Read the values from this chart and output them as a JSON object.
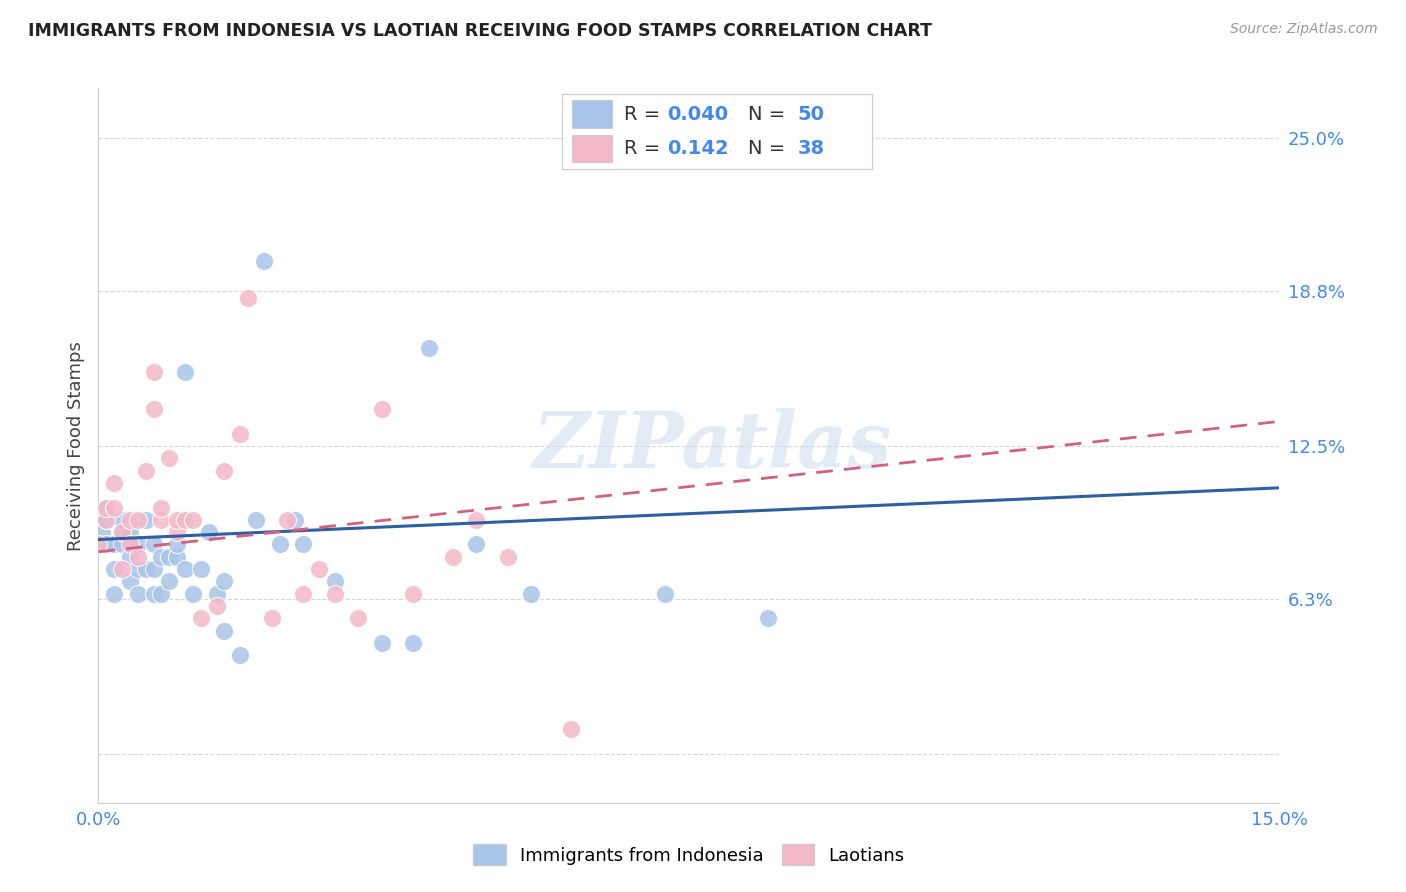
{
  "title": "IMMIGRANTS FROM INDONESIA VS LAOTIAN RECEIVING FOOD STAMPS CORRELATION CHART",
  "source": "Source: ZipAtlas.com",
  "ylabel": "Receiving Food Stamps",
  "xlim": [
    0.0,
    0.15
  ],
  "ylim": [
    -0.02,
    0.27
  ],
  "ytick_vals": [
    0.0,
    0.063,
    0.125,
    0.188,
    0.25
  ],
  "ytick_labels": [
    "",
    "6.3%",
    "12.5%",
    "18.8%",
    "25.0%"
  ],
  "xtick_vals": [
    0.0,
    0.03,
    0.06,
    0.09,
    0.12,
    0.15
  ],
  "xtick_labels": [
    "0.0%",
    "",
    "",
    "",
    "",
    "15.0%"
  ],
  "watermark": "ZIPatlas",
  "color_indonesia": "#a8c4e8",
  "color_laotian": "#f4b8c8",
  "color_line_indonesia": "#2e5fa3",
  "color_line_laotian": "#d4607a",
  "background_color": "#ffffff",
  "grid_color": "#d8d8d8",
  "legend_r1": "R = 0.040",
  "legend_n1": "N = 50",
  "legend_r2": "R =  0.142",
  "legend_n2": "N = 38",
  "indonesia_x": [
    0.0,
    0.0005,
    0.001,
    0.001,
    0.001,
    0.002,
    0.002,
    0.002,
    0.003,
    0.003,
    0.003,
    0.004,
    0.004,
    0.004,
    0.005,
    0.005,
    0.005,
    0.006,
    0.006,
    0.007,
    0.007,
    0.007,
    0.008,
    0.008,
    0.009,
    0.009,
    0.01,
    0.01,
    0.011,
    0.011,
    0.012,
    0.013,
    0.014,
    0.015,
    0.016,
    0.016,
    0.018,
    0.02,
    0.021,
    0.023,
    0.025,
    0.026,
    0.03,
    0.036,
    0.04,
    0.042,
    0.048,
    0.055,
    0.072,
    0.085
  ],
  "indonesia_y": [
    0.095,
    0.09,
    0.085,
    0.095,
    0.1,
    0.065,
    0.075,
    0.085,
    0.085,
    0.09,
    0.095,
    0.07,
    0.08,
    0.09,
    0.065,
    0.075,
    0.085,
    0.095,
    0.075,
    0.065,
    0.075,
    0.085,
    0.08,
    0.065,
    0.07,
    0.08,
    0.08,
    0.085,
    0.075,
    0.155,
    0.065,
    0.075,
    0.09,
    0.065,
    0.07,
    0.05,
    0.04,
    0.095,
    0.2,
    0.085,
    0.095,
    0.085,
    0.07,
    0.045,
    0.045,
    0.165,
    0.085,
    0.065,
    0.065,
    0.055
  ],
  "laotian_x": [
    0.0,
    0.001,
    0.001,
    0.002,
    0.002,
    0.003,
    0.003,
    0.004,
    0.004,
    0.005,
    0.005,
    0.006,
    0.007,
    0.007,
    0.008,
    0.008,
    0.009,
    0.01,
    0.01,
    0.011,
    0.012,
    0.013,
    0.015,
    0.016,
    0.018,
    0.019,
    0.022,
    0.024,
    0.026,
    0.028,
    0.03,
    0.033,
    0.036,
    0.04,
    0.045,
    0.048,
    0.052,
    0.06
  ],
  "laotian_y": [
    0.085,
    0.095,
    0.1,
    0.1,
    0.11,
    0.075,
    0.09,
    0.085,
    0.095,
    0.08,
    0.095,
    0.115,
    0.14,
    0.155,
    0.095,
    0.1,
    0.12,
    0.09,
    0.095,
    0.095,
    0.095,
    0.055,
    0.06,
    0.115,
    0.13,
    0.185,
    0.055,
    0.095,
    0.065,
    0.075,
    0.065,
    0.055,
    0.14,
    0.065,
    0.08,
    0.095,
    0.08,
    0.01
  ]
}
